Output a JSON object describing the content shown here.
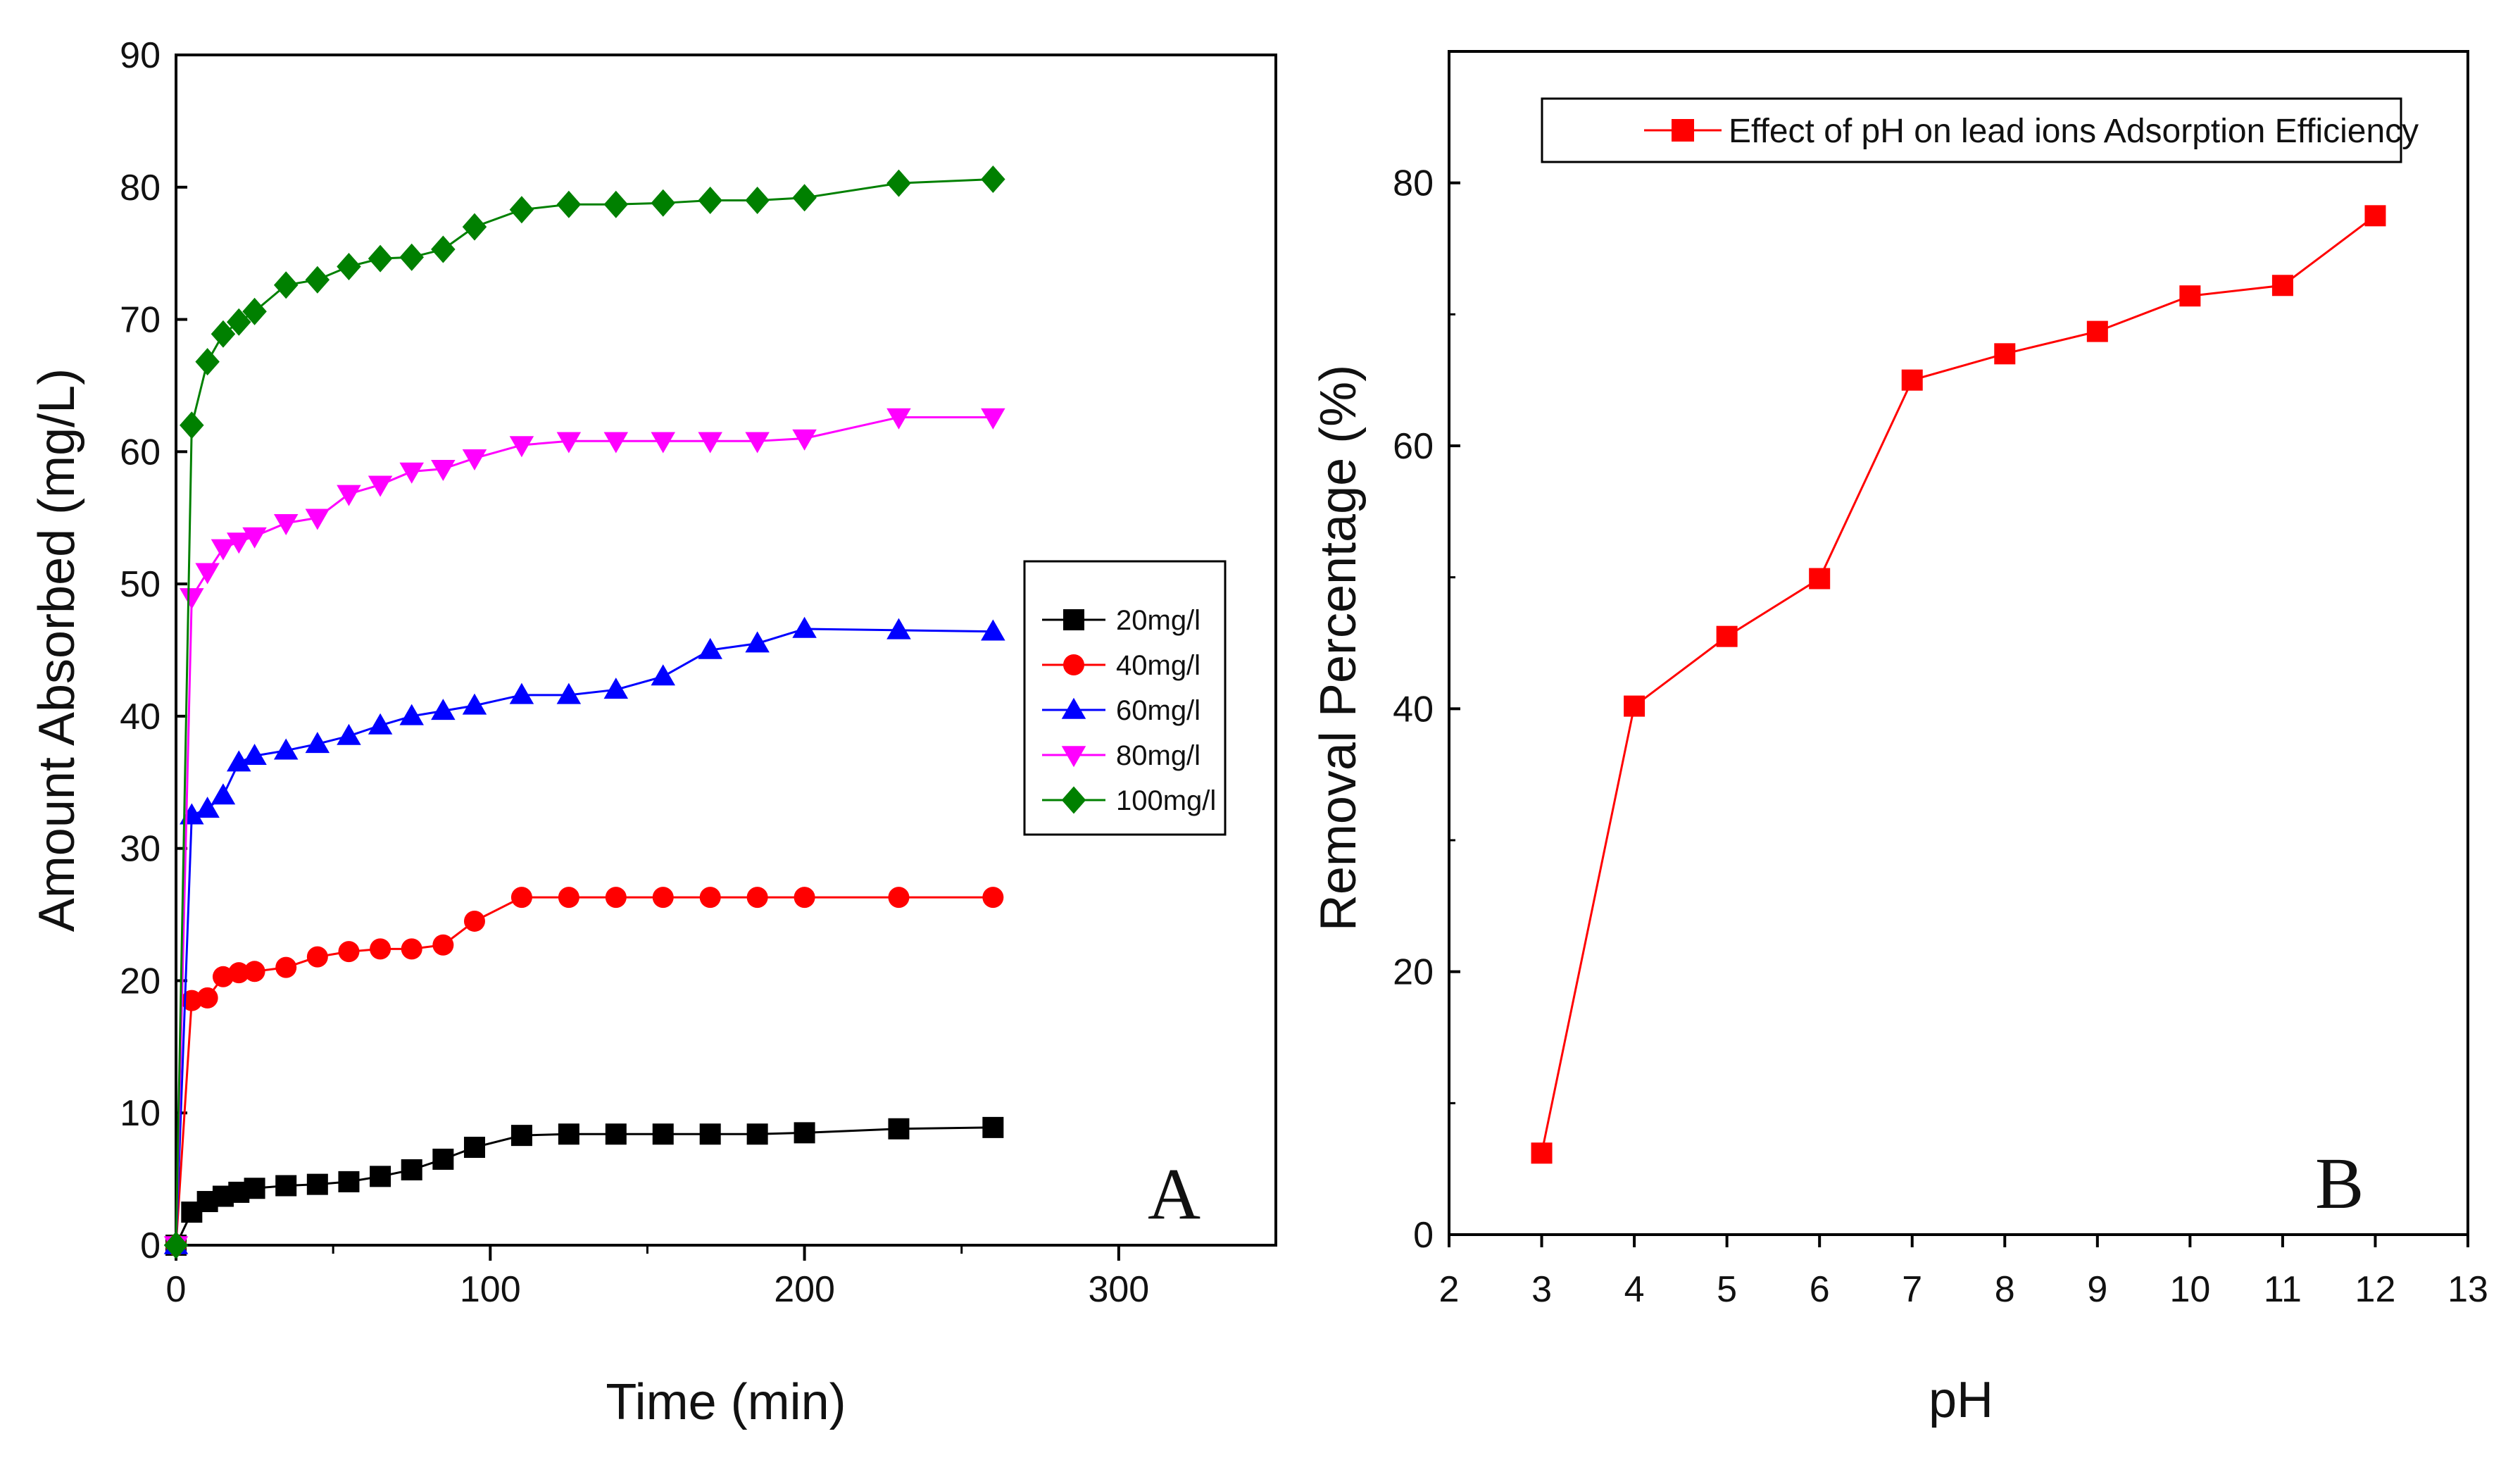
{
  "chart_data": [
    {
      "type": "line",
      "panel_label": "A",
      "xlabel": "Time (min)",
      "ylabel": "Amount Absorbed (mg/L)",
      "xlim": [
        0,
        350
      ],
      "ylim": [
        0,
        90
      ],
      "xticks": [
        0,
        100,
        200,
        300
      ],
      "yticks": [
        0,
        10,
        20,
        30,
        40,
        50,
        60,
        70,
        80,
        90
      ],
      "x": [
        0,
        5,
        10,
        15,
        20,
        25,
        35,
        45,
        55,
        65,
        75,
        85,
        95,
        110,
        125,
        140,
        155,
        170,
        185,
        200,
        230,
        260
      ],
      "legend_position": "center-right",
      "series": [
        {
          "name": "20mg/l",
          "color": "#000000",
          "marker": "square",
          "values": [
            0,
            2.5,
            3.3,
            3.7,
            4.0,
            4.3,
            4.5,
            4.6,
            4.8,
            5.2,
            5.7,
            6.5,
            7.4,
            8.3,
            8.4,
            8.4,
            8.4,
            8.4,
            8.4,
            8.5,
            8.8,
            8.9
          ]
        },
        {
          "name": "40mg/l",
          "color": "#ff0000",
          "marker": "circle",
          "values": [
            0,
            18.5,
            18.7,
            20.3,
            20.6,
            20.7,
            21.0,
            21.8,
            22.2,
            22.4,
            22.4,
            22.7,
            24.5,
            26.3,
            26.3,
            26.3,
            26.3,
            26.3,
            26.3,
            26.3,
            26.3,
            26.3
          ]
        },
        {
          "name": "60mg/l",
          "color": "#0000ff",
          "marker": "triangle-up",
          "values": [
            0,
            32.5,
            33.0,
            34.0,
            36.5,
            37.0,
            37.4,
            37.9,
            38.5,
            39.3,
            40.0,
            40.4,
            40.8,
            41.6,
            41.6,
            42.0,
            43.0,
            45.0,
            45.5,
            46.6,
            46.5,
            46.4
          ]
        },
        {
          "name": "80mg/l",
          "color": "#ff00ff",
          "marker": "triangle-down",
          "values": [
            0,
            49.0,
            50.9,
            52.7,
            53.2,
            53.6,
            54.6,
            55.0,
            56.8,
            57.5,
            58.5,
            58.7,
            59.5,
            60.5,
            60.8,
            60.8,
            60.8,
            60.8,
            60.8,
            61.0,
            62.6,
            62.6
          ]
        },
        {
          "name": "100mg/l",
          "color": "#008000",
          "marker": "diamond",
          "values": [
            0,
            62.0,
            66.8,
            68.9,
            69.8,
            70.6,
            72.6,
            73.0,
            74.0,
            74.6,
            74.7,
            75.3,
            77.0,
            78.3,
            78.7,
            78.7,
            78.8,
            79.0,
            79.0,
            79.2,
            80.3,
            80.6
          ]
        }
      ]
    },
    {
      "type": "line",
      "panel_label": "B",
      "xlabel": "pH",
      "ylabel": "Removal Percentage (%)",
      "xlim": [
        2,
        13
      ],
      "ylim": [
        0,
        90
      ],
      "xticks": [
        2,
        3,
        4,
        5,
        6,
        7,
        8,
        9,
        10,
        11,
        12,
        13
      ],
      "yticks": [
        0,
        20,
        40,
        60,
        80
      ],
      "x": [
        3,
        4,
        5,
        6,
        7,
        8,
        9,
        10,
        11,
        12
      ],
      "legend_position": "top",
      "series": [
        {
          "name": "Effect of pH on lead ions Adsorption Efficiency",
          "color": "#ff0000",
          "marker": "square",
          "values": [
            6.2,
            40.2,
            45.5,
            49.9,
            65.0,
            67.0,
            68.7,
            71.4,
            72.2,
            77.5
          ]
        }
      ]
    }
  ]
}
